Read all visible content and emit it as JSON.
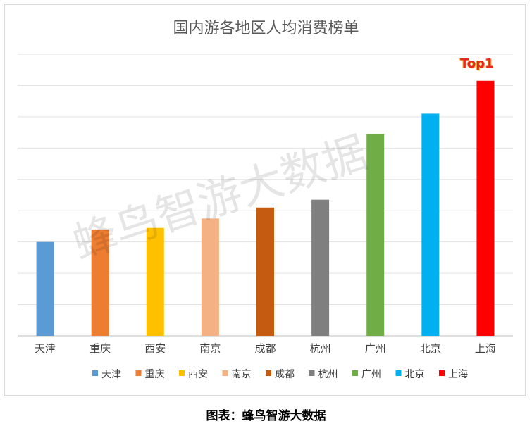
{
  "chart_data": {
    "type": "bar",
    "title": "国内游各地区人均消费榜单",
    "categories": [
      "天津",
      "重庆",
      "西安",
      "南京",
      "成都",
      "杭州",
      "广州",
      "北京",
      "上海"
    ],
    "values": [
      3.0,
      3.4,
      3.45,
      3.75,
      4.1,
      4.35,
      6.45,
      7.1,
      8.15
    ],
    "ylim": [
      0,
      9
    ],
    "colors": [
      "#5b9bd5",
      "#ed7d31",
      "#ffc000",
      "#f4b183",
      "#c55a11",
      "#7f7f7f",
      "#70ad47",
      "#00b0f0",
      "#ff0000"
    ],
    "grid": true,
    "legend_position": "bottom",
    "annotation": "Top1"
  },
  "watermark": "蜂鸟智游大数据",
  "caption": "图表：蜂鸟智游大数据"
}
